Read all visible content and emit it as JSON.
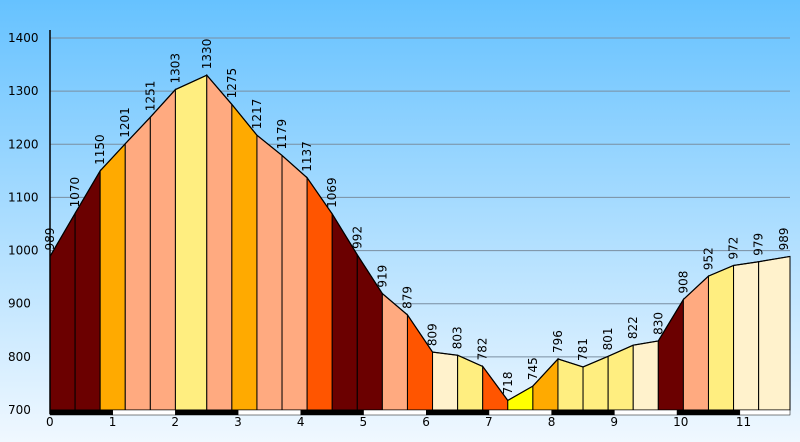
{
  "chart_data": {
    "type": "area",
    "title": "",
    "xlabel": "",
    "ylabel": "",
    "ylim": [
      700,
      1400
    ],
    "xlim": [
      0,
      11.8
    ],
    "y_ticks": [
      700,
      800,
      900,
      1000,
      1100,
      1200,
      1300,
      1400
    ],
    "x_ticks": [
      0,
      1,
      2,
      3,
      4,
      5,
      6,
      7,
      8,
      9,
      10,
      11
    ],
    "grid": true,
    "legend": "none",
    "x": [
      0,
      0.4,
      0.8,
      1.2,
      1.6,
      2.0,
      2.5,
      2.9,
      3.3,
      3.7,
      4.1,
      4.5,
      4.9,
      5.3,
      5.7,
      6.1,
      6.5,
      6.9,
      7.3,
      7.7,
      8.1,
      8.5,
      8.9,
      9.3,
      9.7,
      10.1,
      10.5,
      10.9,
      11.3,
      11.8
    ],
    "values": [
      989,
      1070,
      1150,
      1201,
      1251,
      1303,
      1330,
      1275,
      1217,
      1179,
      1137,
      1069,
      992,
      919,
      879,
      809,
      803,
      782,
      718,
      745,
      796,
      781,
      801,
      822,
      830,
      908,
      952,
      972,
      979,
      989
    ],
    "segment_colors": [
      "#6b0000",
      "#6b0000",
      "#ffaa00",
      "#ffaa80",
      "#ffaa80",
      "#ffee80",
      "#ffaa80",
      "#ffaa00",
      "#ffaa80",
      "#ffaa80",
      "#ff5500",
      "#6b0000",
      "#6b0000",
      "#ffaa80",
      "#ff5500",
      "#fff2cc",
      "#ffee80",
      "#ff5500",
      "#ffff00",
      "#ffaa00",
      "#ffee80",
      "#ffee80",
      "#ffee80",
      "#fff2cc",
      "#6b0000",
      "#ffaa80",
      "#ffee80",
      "#fff2cc",
      "#fff2cc"
    ]
  },
  "colors": {
    "background_top": "#66c2ff",
    "background_bottom": "#f0f8ff",
    "grid": "#7a8ea0",
    "outline": "#000000",
    "km_bar_dark": "#000000",
    "km_bar_light": "#ffffff"
  }
}
